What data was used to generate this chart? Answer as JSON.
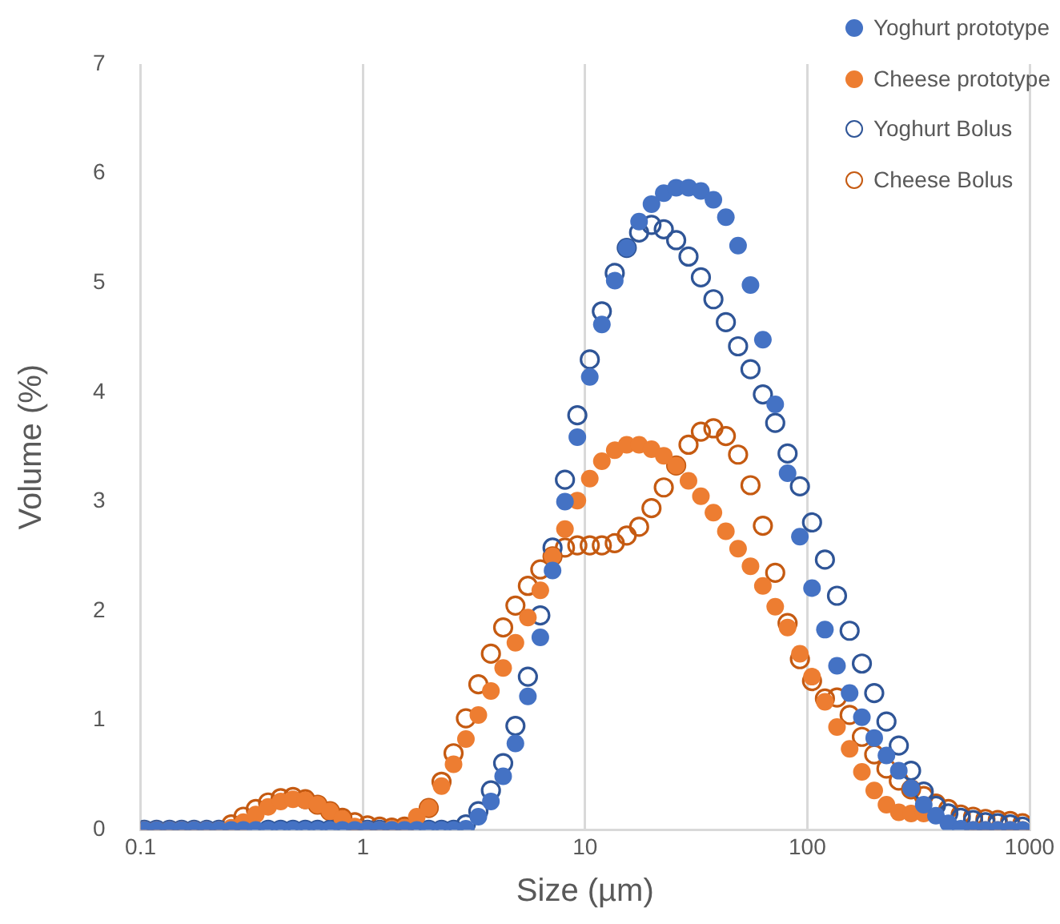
{
  "chart_data": {
    "type": "scatter",
    "xlabel": "Size (µm)",
    "ylabel": "Volume (%)",
    "log": "x",
    "grid": "x",
    "legend": "top right",
    "marker": "circle",
    "xlim": [
      0.1,
      1000
    ],
    "xticks": [
      0.1,
      1,
      10,
      100,
      1000
    ],
    "ylim": [
      0,
      7
    ],
    "yticks": [
      0,
      1,
      2,
      3,
      4,
      5,
      6,
      7
    ],
    "x": [
      0.104,
      0.118,
      0.135,
      0.153,
      0.174,
      0.198,
      0.225,
      0.256,
      0.29,
      0.33,
      0.375,
      0.427,
      0.485,
      0.551,
      0.626,
      0.712,
      0.809,
      0.92,
      1.05,
      1.19,
      1.35,
      1.54,
      1.75,
      1.98,
      2.26,
      2.56,
      2.91,
      3.31,
      3.77,
      4.28,
      4.86,
      5.53,
      6.29,
      7.14,
      8.12,
      9.23,
      10.5,
      11.9,
      13.6,
      15.4,
      17.5,
      19.9,
      22.6,
      25.7,
      29.2,
      33.2,
      37.8,
      43,
      48.8,
      55.5,
      63.1,
      71.7,
      81.5,
      92.6,
      105,
      120,
      136,
      155,
      176,
      200,
      227,
      258,
      293,
      334,
      379,
      431,
      490,
      557,
      633,
      719,
      818,
      929
    ],
    "series": [
      {
        "name": "Yoghurt prototype",
        "color": "#4472c4",
        "values": [
          0,
          0,
          0,
          0,
          0,
          0,
          0,
          0,
          0,
          0,
          0,
          0,
          0,
          0,
          0,
          0,
          0,
          0,
          0,
          0,
          0,
          0,
          0,
          0,
          0,
          0,
          0.01,
          0.12,
          0.26,
          0.49,
          0.79,
          1.22,
          1.76,
          2.37,
          3.0,
          3.59,
          4.14,
          4.62,
          5.02,
          5.32,
          5.56,
          5.72,
          5.82,
          5.87,
          5.87,
          5.84,
          5.76,
          5.6,
          5.34,
          4.98,
          4.48,
          3.89,
          3.26,
          2.68,
          2.21,
          1.83,
          1.5,
          1.25,
          1.03,
          0.84,
          0.68,
          0.54,
          0.38,
          0.23,
          0.13,
          0.06,
          0.01,
          0,
          0,
          0,
          0,
          0
        ]
      },
      {
        "name": "Cheese prototype",
        "color": "#ed7d31",
        "values": [
          0,
          0,
          0,
          0,
          0,
          0,
          0,
          0.02,
          0.07,
          0.14,
          0.21,
          0.26,
          0.28,
          0.27,
          0.23,
          0.17,
          0.1,
          0.03,
          0,
          0,
          0.01,
          0.02,
          0.12,
          0.2,
          0.4,
          0.6,
          0.83,
          1.05,
          1.27,
          1.48,
          1.71,
          1.94,
          2.19,
          2.5,
          2.75,
          3.01,
          3.21,
          3.37,
          3.47,
          3.52,
          3.52,
          3.48,
          3.42,
          3.33,
          3.19,
          3.05,
          2.9,
          2.73,
          2.57,
          2.41,
          2.23,
          2.04,
          1.85,
          1.61,
          1.4,
          1.17,
          0.94,
          0.74,
          0.53,
          0.36,
          0.23,
          0.16,
          0.15,
          0.15,
          null,
          null,
          null,
          0,
          0,
          0,
          0,
          0
        ]
      },
      {
        "name": "Yoghurt Bolus",
        "color": "#2f5597",
        "values": [
          0,
          0,
          0,
          0,
          0,
          0,
          0,
          null,
          null,
          null,
          0,
          0,
          0,
          0,
          0,
          0,
          null,
          null,
          0,
          0,
          null,
          null,
          null,
          0,
          0,
          0,
          0.05,
          0.17,
          0.36,
          0.61,
          0.95,
          1.4,
          1.96,
          2.58,
          3.2,
          3.79,
          4.3,
          4.74,
          5.09,
          5.32,
          5.46,
          5.53,
          5.49,
          5.39,
          5.24,
          5.05,
          4.85,
          4.64,
          4.42,
          4.21,
          3.98,
          3.72,
          3.44,
          3.14,
          2.81,
          2.47,
          2.14,
          1.82,
          1.52,
          1.25,
          0.99,
          0.77,
          0.54,
          0.35,
          0.22,
          0.15,
          0.11,
          0.09,
          0.07,
          0.06,
          0.05,
          0.03
        ]
      },
      {
        "name": "Cheese Bolus",
        "color": "#c55a11",
        "values": [
          null,
          null,
          null,
          null,
          null,
          null,
          null,
          0.05,
          0.12,
          0.19,
          0.25,
          0.29,
          0.3,
          0.28,
          0.23,
          0.17,
          0.11,
          0.07,
          0.04,
          0.03,
          0.02,
          0.03,
          null,
          0.2,
          0.44,
          0.7,
          1.02,
          1.33,
          1.61,
          1.85,
          2.05,
          2.23,
          2.38,
          2.5,
          2.58,
          2.6,
          2.6,
          2.6,
          2.62,
          2.69,
          2.77,
          2.94,
          3.13,
          3.33,
          3.52,
          3.64,
          3.67,
          3.6,
          3.43,
          3.15,
          2.78,
          2.35,
          1.89,
          1.56,
          1.36,
          1.2,
          1.21,
          1.05,
          0.85,
          0.69,
          0.56,
          0.45,
          0.37,
          0.31,
          0.24,
          0.19,
          0.14,
          0.12,
          0.1,
          0.09,
          0.08,
          0.06
        ]
      }
    ]
  }
}
